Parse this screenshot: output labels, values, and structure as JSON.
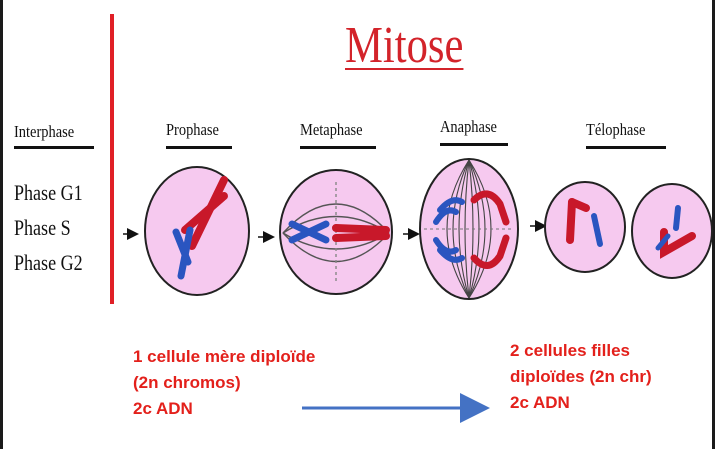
{
  "title": "Mitose",
  "interphase": {
    "label": "Interphase",
    "phases": [
      "Phase G1",
      "Phase S",
      "Phase G2"
    ]
  },
  "stages": {
    "prophase": "Prophase",
    "metaphase": "Metaphase",
    "anaphase": "Anaphase",
    "telophase": "Télophase"
  },
  "notes": {
    "left": [
      "1 cellule mère diploïde",
      "(2n chromos)",
      "2c ADN"
    ],
    "right": [
      "2 cellules filles",
      "diploïdes (2n chr)",
      "2c ADN"
    ]
  },
  "colors": {
    "title": "#d3232a",
    "note_text": "#e3201b",
    "divider": "#e01f26",
    "cell_fill": "#f6c9ef",
    "chromosome_red": "#c8182a",
    "chromosome_blue": "#2a55c0",
    "process_arrow": "#4472c4"
  }
}
